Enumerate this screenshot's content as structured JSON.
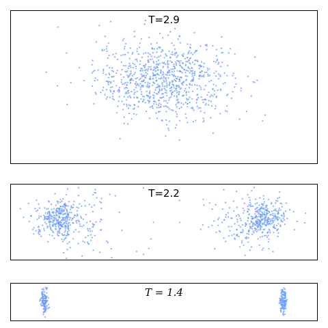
{
  "chart_data": [
    {
      "type": "scatter",
      "title": "T=2.9",
      "xlabel": "",
      "ylabel": "",
      "axes_ticks": false,
      "grid": false,
      "color": "#6699ff",
      "xlim": [
        -1,
        1
      ],
      "ylim": [
        -1,
        1
      ],
      "clusters": [
        {
          "cx": 0.0,
          "cy": 0.1,
          "sx": 0.22,
          "sy": 0.26,
          "n": 900
        }
      ]
    },
    {
      "type": "scatter",
      "title": "T=2.2",
      "xlabel": "",
      "ylabel": "",
      "axes_ticks": false,
      "grid": false,
      "color": "#6699ff",
      "xlim": [
        -1,
        1
      ],
      "ylim": [
        -1,
        1
      ],
      "clusters": [
        {
          "cx": -0.7,
          "cy": 0.1,
          "sx": 0.07,
          "sy": 0.22,
          "n": 260
        },
        {
          "cx": -0.58,
          "cy": 0.0,
          "sx": 0.12,
          "sy": 0.45,
          "n": 140
        },
        {
          "cx": 0.66,
          "cy": 0.1,
          "sx": 0.07,
          "sy": 0.22,
          "n": 260
        },
        {
          "cx": 0.55,
          "cy": 0.0,
          "sx": 0.12,
          "sy": 0.45,
          "n": 140
        },
        {
          "cx": 0.0,
          "cy": 0.0,
          "sx": 0.45,
          "sy": 0.6,
          "n": 30
        }
      ]
    },
    {
      "type": "scatter",
      "title": "T = 1.4",
      "title_style": "italic",
      "xlabel": "",
      "ylabel": "",
      "axes_ticks": false,
      "grid": false,
      "color": "#6699ff",
      "xlim": [
        -1,
        1
      ],
      "ylim": [
        -1,
        1
      ],
      "clusters": [
        {
          "cx": -0.78,
          "cy": 0.05,
          "sx": 0.012,
          "sy": 0.35,
          "n": 120
        },
        {
          "cx": 0.78,
          "cy": 0.05,
          "sx": 0.012,
          "sy": 0.35,
          "n": 120
        }
      ]
    }
  ]
}
